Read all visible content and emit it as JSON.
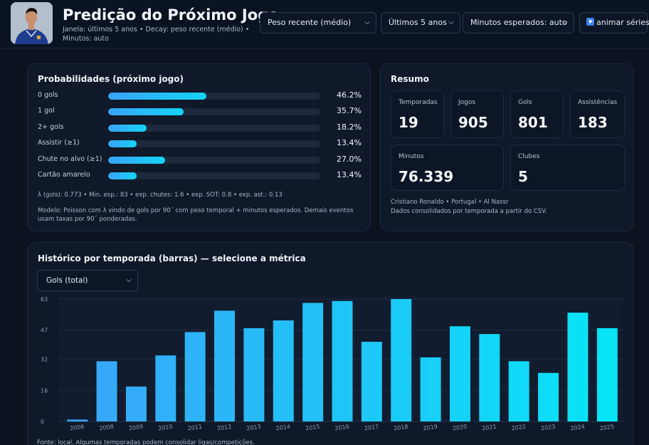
{
  "header": {
    "title": "Predição do Próximo Jogo",
    "subtitle": "Janela: últimos 5 anos • Decay: peso recente (médio) • Minutos: auto",
    "selects": [
      {
        "value": "Peso recente (médio)"
      },
      {
        "value": "Últimos 5 anos"
      },
      {
        "value": "Minutos esperados: auto"
      }
    ],
    "animate_label": "animar séries"
  },
  "probabilities": {
    "title": "Probabilidades (próximo jogo)",
    "rows": [
      {
        "label": "0 gols",
        "value": "46.2%",
        "pct": 46.2
      },
      {
        "label": "1 gol",
        "value": "35.7%",
        "pct": 35.7
      },
      {
        "label": "2+ gols",
        "value": "18.2%",
        "pct": 18.2
      },
      {
        "label": "Assistir (≥1)",
        "value": "13.4%",
        "pct": 13.4
      },
      {
        "label": "Chute no alvo (≥1)",
        "value": "27.0%",
        "pct": 27.0
      },
      {
        "label": "Cartão amarelo",
        "value": "13.4%",
        "pct": 13.4
      }
    ],
    "stats_line": "λ (gols): 0.773 • Min. esp.: 83 • exp. chutes: 1.6 • exp. SOT: 0.8 • exp. ast.: 0.13",
    "model_note": "Modelo: Poisson com λ vindo de gols por 90´ com peso temporal + minutos esperados. Demais eventos usam taxas por 90´ ponderadas."
  },
  "summary": {
    "title": "Resumo",
    "stats": [
      {
        "label": "Temporadas",
        "value": "19"
      },
      {
        "label": "Jogos",
        "value": "905"
      },
      {
        "label": "Gols",
        "value": "801"
      },
      {
        "label": "Assistências",
        "value": "183"
      },
      {
        "label": "Minutos",
        "value": "76.339"
      },
      {
        "label": "Clubes",
        "value": "5"
      }
    ],
    "player_line": "Cristiano Ronaldo • Portugal • Al Nassr",
    "source_line": "Dados consolidados por temporada a partir do CSV."
  },
  "history": {
    "title": "Histórico por temporada (barras) — selecione a métrica",
    "metric": "Gols (total)",
    "footnote": "Fonte: local. Algumas temporadas podem consolidar ligas/competições."
  },
  "chart_data": {
    "type": "bar",
    "categories": [
      "2006",
      "2008",
      "2009",
      "2010",
      "2011",
      "2012",
      "2013",
      "2014",
      "2015",
      "2016",
      "2017",
      "2018",
      "2019",
      "2020",
      "2021",
      "2022",
      "2023",
      "2024",
      "2025"
    ],
    "values": [
      1,
      31,
      18,
      34,
      46,
      57,
      48,
      52,
      61,
      62,
      41,
      63,
      33,
      49,
      45,
      31,
      25,
      56,
      48
    ],
    "ylim": [
      0,
      63
    ],
    "yticks": [
      "0",
      "16",
      "32",
      "47",
      "63"
    ],
    "colors": {
      "start": "#3aa3f8",
      "end": "#06e6f7"
    }
  }
}
